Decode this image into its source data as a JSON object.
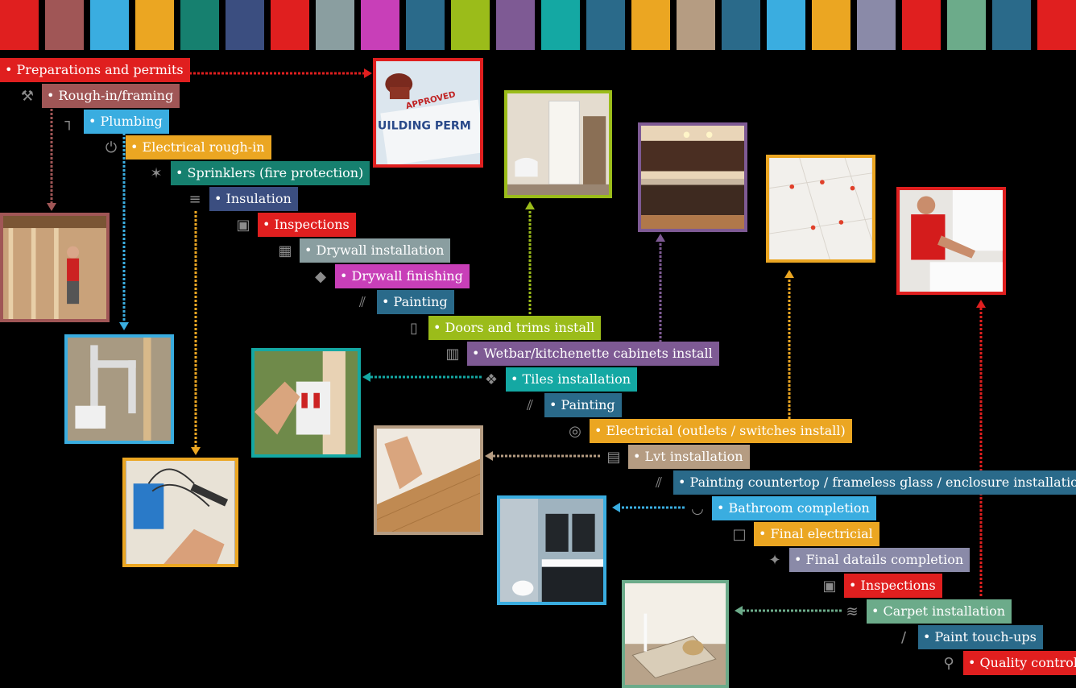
{
  "palette": [
    "#e01f1f",
    "#a05656",
    "#3aade0",
    "#eba622",
    "#16806f",
    "#3b4e80",
    "#e01f1f",
    "#8a9ea0",
    "#c83fb8",
    "#2a6a8a",
    "#9bbc1a",
    "#7e5a94",
    "#14a8a3",
    "#2a6a8a",
    "#eba622",
    "#b59c82",
    "#2a6a8a",
    "#3aade0",
    "#eba622",
    "#8a8aa8",
    "#e01f1f",
    "#6cab8a",
    "#2a6a8a",
    "#e01f1f"
  ],
  "steps": [
    {
      "label": "• Preparations and permits",
      "color": "#e01f1f",
      "icon": "document-icon"
    },
    {
      "label": "• Rough-in/framing",
      "color": "#a05656",
      "icon": "tools-icon"
    },
    {
      "label": "• Plumbing",
      "color": "#3aade0",
      "icon": "pipe-icon"
    },
    {
      "label": "• Electrical rough-in",
      "color": "#eba622",
      "icon": "plug-icon"
    },
    {
      "label": "• Sprinklers (fire protection)",
      "color": "#16806f",
      "icon": "sprinkler-icon"
    },
    {
      "label": "• Insulation",
      "color": "#3b4e80",
      "icon": "insulation-icon"
    },
    {
      "label": "• Inspections",
      "color": "#e01f1f",
      "icon": "clipboard-icon"
    },
    {
      "label": "• Drywall installation",
      "color": "#8a9ea0",
      "icon": "drywall-icon"
    },
    {
      "label": "• Drywall finishing",
      "color": "#c83fb8",
      "icon": "trowel-icon"
    },
    {
      "label": "• Painting",
      "color": "#2a6a8a",
      "icon": "paint-roller-icon"
    },
    {
      "label": "• Doors and trims install",
      "color": "#9bbc1a",
      "icon": "door-icon"
    },
    {
      "label": "• Wetbar/kitchenette cabinets install",
      "color": "#7e5a94",
      "icon": "cabinet-icon"
    },
    {
      "label": "• Tiles installation",
      "color": "#14a8a3",
      "icon": "tile-icon"
    },
    {
      "label": "• Painting",
      "color": "#2a6a8a",
      "icon": "paint-roller-icon"
    },
    {
      "label": "• Electricial (outlets / switches install)",
      "color": "#eba622",
      "icon": "outlet-icon"
    },
    {
      "label": "• Lvt installation",
      "color": "#b59c82",
      "icon": "flooring-icon"
    },
    {
      "label": "• Painting countertop / frameless glass / enclosure installation",
      "color": "#2a6a8a",
      "icon": "paint-roller-icon"
    },
    {
      "label": "• Bathroom completion",
      "color": "#3aade0",
      "icon": "bath-icon"
    },
    {
      "label": "• Final electricial",
      "color": "#eba622",
      "icon": "switch-icon"
    },
    {
      "label": "• Final datails completion",
      "color": "#8a8aa8",
      "icon": "details-icon"
    },
    {
      "label": "• Inspections",
      "color": "#e01f1f",
      "icon": "clipboard-icon"
    },
    {
      "label": "• Carpet installation",
      "color": "#6cab8a",
      "icon": "carpet-icon"
    },
    {
      "label": "• Paint touch-ups",
      "color": "#2a6a8a",
      "icon": "brush-icon"
    },
    {
      "label": "• Quality control",
      "color": "#e01f1f",
      "icon": "magnifier-icon"
    }
  ],
  "permit_photo": {
    "stamp": "APPROVED",
    "headline": "UILDING PERM"
  }
}
